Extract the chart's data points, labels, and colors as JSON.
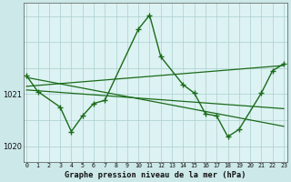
{
  "title": "Graphe pression niveau de la mer (hPa)",
  "bg_color": "#cce8e8",
  "line_color": "#1a6b1a",
  "grid_color_v": "#aacfcf",
  "grid_color_h": "#aacfcf",
  "axis_bg": "#ddf2f2",
  "hours": [
    0,
    1,
    2,
    3,
    4,
    5,
    6,
    7,
    8,
    9,
    10,
    11,
    12,
    13,
    14,
    15,
    16,
    17,
    18,
    19,
    20,
    21,
    22,
    23
  ],
  "ylim": [
    1019.7,
    1022.75
  ],
  "yticks": [
    1020.0,
    1021.0
  ],
  "xlim": [
    -0.3,
    23.3
  ],
  "zigzag_x": [
    0,
    1,
    3,
    4,
    5,
    6,
    7,
    10,
    11,
    12,
    14,
    15,
    16,
    17,
    18,
    19,
    21,
    22,
    23
  ],
  "zigzag_y": [
    1021.35,
    1021.05,
    1020.75,
    1020.28,
    1020.58,
    1020.82,
    1020.88,
    1022.25,
    1022.52,
    1021.72,
    1021.18,
    1021.02,
    1020.62,
    1020.58,
    1020.18,
    1020.32,
    1021.02,
    1021.45,
    1021.58
  ],
  "trend1_x": [
    0,
    23
  ],
  "trend1_y": [
    1021.08,
    1020.72
  ],
  "trend2_x": [
    0,
    23
  ],
  "trend2_y": [
    1021.32,
    1020.38
  ],
  "trend3_x": [
    0,
    23
  ],
  "trend3_y": [
    1021.15,
    1021.55
  ]
}
